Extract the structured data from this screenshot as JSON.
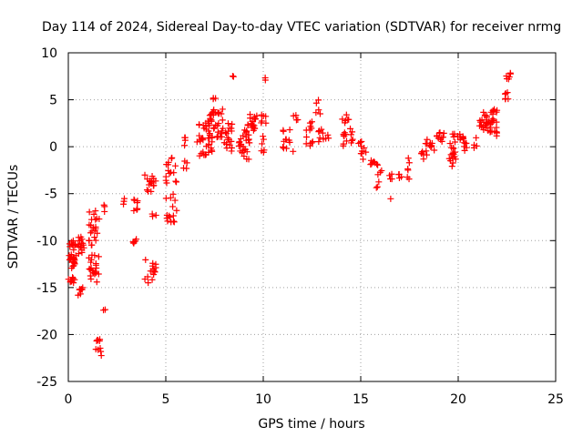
{
  "chart_data": {
    "type": "scatter",
    "title": "Day 114 of 2024, Sidereal Day-to-day VTEC variation (SDTVAR) for receiver nrmg",
    "xlabel": "GPS time / hours",
    "ylabel": "SDTVAR / TECUs",
    "xlim": [
      0,
      25
    ],
    "ylim": [
      -25,
      10
    ],
    "xticks": [
      0,
      5,
      10,
      15,
      20,
      25
    ],
    "yticks": [
      -25,
      -20,
      -15,
      -10,
      -5,
      0,
      5,
      10
    ],
    "grid": true,
    "marker": "+",
    "color": "#ff0000",
    "clusters": [
      {
        "x": [
          0.0,
          0.4
        ],
        "y": [
          -13.0,
          -10.0
        ],
        "n": 30
      },
      {
        "x": [
          0.0,
          0.4
        ],
        "y": [
          -14.5,
          -13.8
        ],
        "n": 8
      },
      {
        "x": [
          0.5,
          0.8
        ],
        "y": [
          -12.0,
          -9.5
        ],
        "n": 15
      },
      {
        "x": [
          0.5,
          0.8
        ],
        "y": [
          -16.2,
          -15.0
        ],
        "n": 8
      },
      {
        "x": [
          1.0,
          1.6
        ],
        "y": [
          -10.5,
          -6.5
        ],
        "n": 22
      },
      {
        "x": [
          1.0,
          1.6
        ],
        "y": [
          -14.5,
          -11.5
        ],
        "n": 22
      },
      {
        "x": [
          1.4,
          1.7
        ],
        "y": [
          -22.3,
          -20.5
        ],
        "n": 10
      },
      {
        "x": [
          1.8,
          1.9
        ],
        "y": [
          -7.0,
          -6.0
        ],
        "n": 3
      },
      {
        "x": [
          1.8,
          1.9
        ],
        "y": [
          -17.8,
          -17.2
        ],
        "n": 2
      },
      {
        "x": [
          2.8,
          2.9
        ],
        "y": [
          -9.9,
          -5.3
        ],
        "n": 3
      },
      {
        "x": [
          3.3,
          3.6
        ],
        "y": [
          -7.0,
          -5.5
        ],
        "n": 8
      },
      {
        "x": [
          3.3,
          3.6
        ],
        "y": [
          -10.3,
          -9.8
        ],
        "n": 6
      },
      {
        "x": [
          3.9,
          4.5
        ],
        "y": [
          -5.0,
          -3.0
        ],
        "n": 15
      },
      {
        "x": [
          3.9,
          4.5
        ],
        "y": [
          -14.5,
          -12.0
        ],
        "n": 15
      },
      {
        "x": [
          4.3,
          4.5
        ],
        "y": [
          -7.5,
          -7.0
        ],
        "n": 3
      },
      {
        "x": [
          5.0,
          5.6
        ],
        "y": [
          -8.2,
          -5.0
        ],
        "n": 15
      },
      {
        "x": [
          5.0,
          5.6
        ],
        "y": [
          -4.0,
          -1.0
        ],
        "n": 15
      },
      {
        "x": [
          5.9,
          6.1
        ],
        "y": [
          -2.5,
          -1.5
        ],
        "n": 4
      },
      {
        "x": [
          5.9,
          6.1
        ],
        "y": [
          0.0,
          1.5
        ],
        "n": 4
      },
      {
        "x": [
          6.6,
          7.4
        ],
        "y": [
          -1.0,
          3.0
        ],
        "n": 40
      },
      {
        "x": [
          7.2,
          8.0
        ],
        "y": [
          1.0,
          4.0
        ],
        "n": 30
      },
      {
        "x": [
          7.4,
          7.6
        ],
        "y": [
          5.0,
          5.5
        ],
        "n": 3
      },
      {
        "x": [
          8.0,
          8.4
        ],
        "y": [
          -0.5,
          2.5
        ],
        "n": 18
      },
      {
        "x": [
          8.3,
          8.5
        ],
        "y": [
          7.2,
          7.6
        ],
        "n": 2
      },
      {
        "x": [
          8.7,
          9.3
        ],
        "y": [
          -1.5,
          1.5
        ],
        "n": 25
      },
      {
        "x": [
          9.0,
          9.6
        ],
        "y": [
          1.5,
          3.5
        ],
        "n": 20
      },
      {
        "x": [
          9.6,
          10.2
        ],
        "y": [
          2.5,
          3.5
        ],
        "n": 8
      },
      {
        "x": [
          9.9,
          10.2
        ],
        "y": [
          -1.0,
          1.5
        ],
        "n": 6
      },
      {
        "x": [
          10.0,
          10.2
        ],
        "y": [
          7.0,
          7.5
        ],
        "n": 2
      },
      {
        "x": [
          11.0,
          11.6
        ],
        "y": [
          -1.0,
          2.0
        ],
        "n": 12
      },
      {
        "x": [
          11.5,
          11.8
        ],
        "y": [
          2.8,
          3.5
        ],
        "n": 4
      },
      {
        "x": [
          12.2,
          12.6
        ],
        "y": [
          0.0,
          3.0
        ],
        "n": 12
      },
      {
        "x": [
          12.7,
          13.0
        ],
        "y": [
          3.5,
          5.5
        ],
        "n": 5
      },
      {
        "x": [
          12.8,
          13.4
        ],
        "y": [
          0.5,
          2.0
        ],
        "n": 10
      },
      {
        "x": [
          14.0,
          14.4
        ],
        "y": [
          2.5,
          3.5
        ],
        "n": 6
      },
      {
        "x": [
          14.0,
          14.6
        ],
        "y": [
          0.0,
          2.0
        ],
        "n": 14
      },
      {
        "x": [
          14.8,
          15.2
        ],
        "y": [
          -0.5,
          0.8
        ],
        "n": 6
      },
      {
        "x": [
          15.0,
          15.4
        ],
        "y": [
          -1.5,
          -0.5
        ],
        "n": 4
      },
      {
        "x": [
          15.5,
          15.8
        ],
        "y": [
          -2.0,
          -1.0
        ],
        "n": 6
      },
      {
        "x": [
          15.8,
          16.1
        ],
        "y": [
          -4.5,
          -1.5
        ],
        "n": 8
      },
      {
        "x": [
          16.3,
          16.6
        ],
        "y": [
          -5.7,
          -2.8
        ],
        "n": 5
      },
      {
        "x": [
          16.8,
          17.1
        ],
        "y": [
          -3.5,
          -1.5
        ],
        "n": 4
      },
      {
        "x": [
          17.3,
          17.5
        ],
        "y": [
          -4.6,
          -1.0
        ],
        "n": 6
      },
      {
        "x": [
          18.1,
          18.4
        ],
        "y": [
          -1.5,
          -0.5
        ],
        "n": 6
      },
      {
        "x": [
          18.3,
          18.8
        ],
        "y": [
          -0.5,
          0.8
        ],
        "n": 12
      },
      {
        "x": [
          18.9,
          19.3
        ],
        "y": [
          0.5,
          1.6
        ],
        "n": 10
      },
      {
        "x": [
          19.5,
          19.9
        ],
        "y": [
          -2.3,
          0.5
        ],
        "n": 16
      },
      {
        "x": [
          19.7,
          20.3
        ],
        "y": [
          0.5,
          1.5
        ],
        "n": 12
      },
      {
        "x": [
          20.3,
          20.6
        ],
        "y": [
          -0.5,
          0.5
        ],
        "n": 6
      },
      {
        "x": [
          20.8,
          21.0
        ],
        "y": [
          -0.3,
          1.0
        ],
        "n": 4
      },
      {
        "x": [
          21.0,
          21.4
        ],
        "y": [
          2.0,
          3.0
        ],
        "n": 8
      },
      {
        "x": [
          21.2,
          21.8
        ],
        "y": [
          1.5,
          4.0
        ],
        "n": 22
      },
      {
        "x": [
          21.6,
          22.0
        ],
        "y": [
          1.0,
          3.0
        ],
        "n": 10
      },
      {
        "x": [
          21.8,
          22.0
        ],
        "y": [
          3.5,
          4.0
        ],
        "n": 4
      },
      {
        "x": [
          22.4,
          22.7
        ],
        "y": [
          5.0,
          6.0
        ],
        "n": 6
      },
      {
        "x": [
          22.4,
          22.7
        ],
        "y": [
          7.2,
          8.0
        ],
        "n": 6
      }
    ]
  }
}
